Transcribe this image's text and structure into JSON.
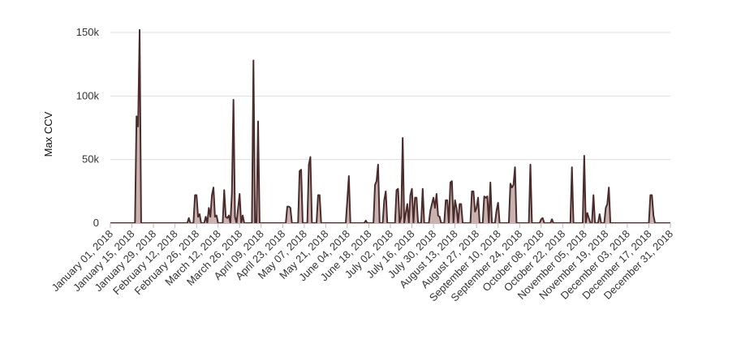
{
  "colors": {
    "line": "#4a2c2c",
    "fill": "#c9b3b0",
    "grid": "#dddddd",
    "axis": "#bbbbbb"
  },
  "chart_data": {
    "type": "area",
    "title": "",
    "xlabel": "",
    "ylabel": "Max CCV",
    "ylim": [
      0,
      150000
    ],
    "y_ticks": [
      0,
      50000,
      100000,
      150000
    ],
    "y_tick_labels": [
      "0",
      "50k",
      "100k",
      "150k"
    ],
    "x_range": [
      "2018-01-01",
      "2018-12-31"
    ],
    "x_ticks": [
      "2018-01-01",
      "2018-01-15",
      "2018-01-29",
      "2018-02-12",
      "2018-02-26",
      "2018-03-12",
      "2018-03-26",
      "2018-04-09",
      "2018-04-23",
      "2018-05-07",
      "2018-05-21",
      "2018-06-04",
      "2018-06-18",
      "2018-07-02",
      "2018-07-16",
      "2018-07-30",
      "2018-08-13",
      "2018-08-27",
      "2018-09-10",
      "2018-09-24",
      "2018-10-08",
      "2018-10-22",
      "2018-11-05",
      "2018-11-19",
      "2018-12-03",
      "2018-12-17",
      "2018-12-31"
    ],
    "x_tick_labels": [
      "January 01, 2018",
      "January 15, 2018",
      "January 29, 2018",
      "February 12, 2018",
      "February 26, 2018",
      "March 12, 2018",
      "March 26, 2018",
      "April 09, 2018",
      "April 23, 2018",
      "May 07, 2018",
      "May 21, 2018",
      "June 04, 2018",
      "June 18, 2018",
      "July 02, 2018",
      "July 16, 2018",
      "July 30, 2018",
      "August 13, 2018",
      "August 27, 2018",
      "September 10, 2018",
      "September 24, 2018",
      "October 08, 2018",
      "October 22, 2018",
      "November 05, 2018",
      "November 19, 2018",
      "December 03, 2018",
      "December 17, 2018",
      "December 31, 2018"
    ],
    "grid": true,
    "legend": "none",
    "series": [
      {
        "points": [
          [
            "2018-01-01",
            0
          ],
          [
            "2018-01-17",
            0
          ],
          [
            "2018-01-18",
            84000
          ],
          [
            "2018-01-19",
            76000
          ],
          [
            "2018-01-20",
            152000
          ],
          [
            "2018-01-21",
            0
          ],
          [
            "2018-02-20",
            0
          ],
          [
            "2018-02-21",
            4000
          ],
          [
            "2018-02-22",
            0
          ],
          [
            "2018-02-24",
            0
          ],
          [
            "2018-02-25",
            22000
          ],
          [
            "2018-02-26",
            22000
          ],
          [
            "2018-02-27",
            5000
          ],
          [
            "2018-02-28",
            7000
          ],
          [
            "2018-03-01",
            0
          ],
          [
            "2018-03-03",
            0
          ],
          [
            "2018-03-04",
            5000
          ],
          [
            "2018-03-05",
            0
          ],
          [
            "2018-03-06",
            12000
          ],
          [
            "2018-03-07",
            5000
          ],
          [
            "2018-03-08",
            22000
          ],
          [
            "2018-03-09",
            28000
          ],
          [
            "2018-03-10",
            5000
          ],
          [
            "2018-03-11",
            6000
          ],
          [
            "2018-03-12",
            0
          ],
          [
            "2018-03-15",
            0
          ],
          [
            "2018-03-16",
            26000
          ],
          [
            "2018-03-17",
            5000
          ],
          [
            "2018-03-18",
            4000
          ],
          [
            "2018-03-19",
            6000
          ],
          [
            "2018-03-20",
            0
          ],
          [
            "2018-03-21",
            24000
          ],
          [
            "2018-03-22",
            97000
          ],
          [
            "2018-03-23",
            5000
          ],
          [
            "2018-03-24",
            0
          ],
          [
            "2018-03-26",
            23000
          ],
          [
            "2018-03-27",
            0
          ],
          [
            "2018-03-28",
            6000
          ],
          [
            "2018-03-29",
            0
          ],
          [
            "2018-04-03",
            0
          ],
          [
            "2018-04-04",
            128000
          ],
          [
            "2018-04-05",
            0
          ],
          [
            "2018-04-06",
            0
          ],
          [
            "2018-04-07",
            80000
          ],
          [
            "2018-04-08",
            0
          ],
          [
            "2018-04-25",
            0
          ],
          [
            "2018-04-26",
            13000
          ],
          [
            "2018-04-27",
            13000
          ],
          [
            "2018-04-28",
            12000
          ],
          [
            "2018-04-29",
            0
          ],
          [
            "2018-05-03",
            0
          ],
          [
            "2018-05-04",
            41000
          ],
          [
            "2018-05-05",
            42000
          ],
          [
            "2018-05-06",
            0
          ],
          [
            "2018-05-09",
            0
          ],
          [
            "2018-05-10",
            46000
          ],
          [
            "2018-05-11",
            52000
          ],
          [
            "2018-05-12",
            0
          ],
          [
            "2018-05-15",
            0
          ],
          [
            "2018-05-16",
            22000
          ],
          [
            "2018-05-17",
            22000
          ],
          [
            "2018-05-18",
            0
          ],
          [
            "2018-06-03",
            0
          ],
          [
            "2018-06-04",
            18000
          ],
          [
            "2018-06-05",
            37000
          ],
          [
            "2018-06-06",
            0
          ],
          [
            "2018-06-15",
            0
          ],
          [
            "2018-06-16",
            2000
          ],
          [
            "2018-06-17",
            0
          ],
          [
            "2018-06-21",
            0
          ],
          [
            "2018-06-22",
            30000
          ],
          [
            "2018-06-23",
            33000
          ],
          [
            "2018-06-24",
            46000
          ],
          [
            "2018-06-25",
            0
          ],
          [
            "2018-06-27",
            0
          ],
          [
            "2018-06-28",
            18000
          ],
          [
            "2018-06-29",
            25000
          ],
          [
            "2018-06-30",
            0
          ],
          [
            "2018-07-05",
            0
          ],
          [
            "2018-07-06",
            26000
          ],
          [
            "2018-07-07",
            27000
          ],
          [
            "2018-07-08",
            0
          ],
          [
            "2018-07-09",
            5000
          ],
          [
            "2018-07-10",
            67000
          ],
          [
            "2018-07-11",
            0
          ],
          [
            "2018-07-12",
            8000
          ],
          [
            "2018-07-13",
            15000
          ],
          [
            "2018-07-14",
            0
          ],
          [
            "2018-07-15",
            22000
          ],
          [
            "2018-07-16",
            27000
          ],
          [
            "2018-07-17",
            0
          ],
          [
            "2018-07-18",
            20000
          ],
          [
            "2018-07-19",
            20000
          ],
          [
            "2018-07-20",
            0
          ],
          [
            "2018-07-22",
            0
          ],
          [
            "2018-07-23",
            27000
          ],
          [
            "2018-07-24",
            0
          ],
          [
            "2018-07-27",
            0
          ],
          [
            "2018-07-28",
            10000
          ],
          [
            "2018-07-29",
            15000
          ],
          [
            "2018-07-30",
            20000
          ],
          [
            "2018-07-31",
            12000
          ],
          [
            "2018-08-01",
            23000
          ],
          [
            "2018-08-02",
            6000
          ],
          [
            "2018-08-03",
            5000
          ],
          [
            "2018-08-04",
            0
          ],
          [
            "2018-08-06",
            0
          ],
          [
            "2018-08-07",
            18000
          ],
          [
            "2018-08-08",
            18000
          ],
          [
            "2018-08-09",
            0
          ],
          [
            "2018-08-10",
            32000
          ],
          [
            "2018-08-11",
            33000
          ],
          [
            "2018-08-12",
            0
          ],
          [
            "2018-08-13",
            18000
          ],
          [
            "2018-08-14",
            12000
          ],
          [
            "2018-08-15",
            0
          ],
          [
            "2018-08-16",
            15000
          ],
          [
            "2018-08-17",
            15000
          ],
          [
            "2018-08-18",
            0
          ],
          [
            "2018-08-23",
            0
          ],
          [
            "2018-08-24",
            25000
          ],
          [
            "2018-08-25",
            25000
          ],
          [
            "2018-08-26",
            9000
          ],
          [
            "2018-08-27",
            12000
          ],
          [
            "2018-08-28",
            20000
          ],
          [
            "2018-08-29",
            0
          ],
          [
            "2018-08-31",
            0
          ],
          [
            "2018-09-01",
            21000
          ],
          [
            "2018-09-02",
            20000
          ],
          [
            "2018-09-03",
            21000
          ],
          [
            "2018-09-04",
            0
          ],
          [
            "2018-09-05",
            32000
          ],
          [
            "2018-09-06",
            0
          ],
          [
            "2018-09-08",
            0
          ],
          [
            "2018-09-09",
            10000
          ],
          [
            "2018-09-10",
            16000
          ],
          [
            "2018-09-11",
            0
          ],
          [
            "2018-09-17",
            0
          ],
          [
            "2018-09-18",
            31000
          ],
          [
            "2018-09-19",
            28000
          ],
          [
            "2018-09-20",
            30000
          ],
          [
            "2018-09-21",
            44000
          ],
          [
            "2018-09-22",
            0
          ],
          [
            "2018-09-30",
            0
          ],
          [
            "2018-10-01",
            46000
          ],
          [
            "2018-10-02",
            0
          ],
          [
            "2018-10-07",
            0
          ],
          [
            "2018-10-08",
            3000
          ],
          [
            "2018-10-09",
            4000
          ],
          [
            "2018-10-10",
            0
          ],
          [
            "2018-10-14",
            0
          ],
          [
            "2018-10-15",
            3000
          ],
          [
            "2018-10-16",
            0
          ],
          [
            "2018-10-27",
            0
          ],
          [
            "2018-10-28",
            44000
          ],
          [
            "2018-10-29",
            0
          ],
          [
            "2018-11-04",
            0
          ],
          [
            "2018-11-05",
            53000
          ],
          [
            "2018-11-06",
            0
          ],
          [
            "2018-11-07",
            8000
          ],
          [
            "2018-11-08",
            4000
          ],
          [
            "2018-11-09",
            0
          ],
          [
            "2018-11-10",
            0
          ],
          [
            "2018-11-11",
            22000
          ],
          [
            "2018-11-12",
            0
          ],
          [
            "2018-11-14",
            0
          ],
          [
            "2018-11-15",
            7000
          ],
          [
            "2018-11-16",
            0
          ],
          [
            "2018-11-18",
            0
          ],
          [
            "2018-11-19",
            12000
          ],
          [
            "2018-11-20",
            15000
          ],
          [
            "2018-11-21",
            28000
          ],
          [
            "2018-11-22",
            0
          ],
          [
            "2018-12-17",
            0
          ],
          [
            "2018-12-18",
            22000
          ],
          [
            "2018-12-19",
            22000
          ],
          [
            "2018-12-20",
            6000
          ],
          [
            "2018-12-21",
            0
          ],
          [
            "2018-12-31",
            0
          ]
        ]
      }
    ]
  }
}
